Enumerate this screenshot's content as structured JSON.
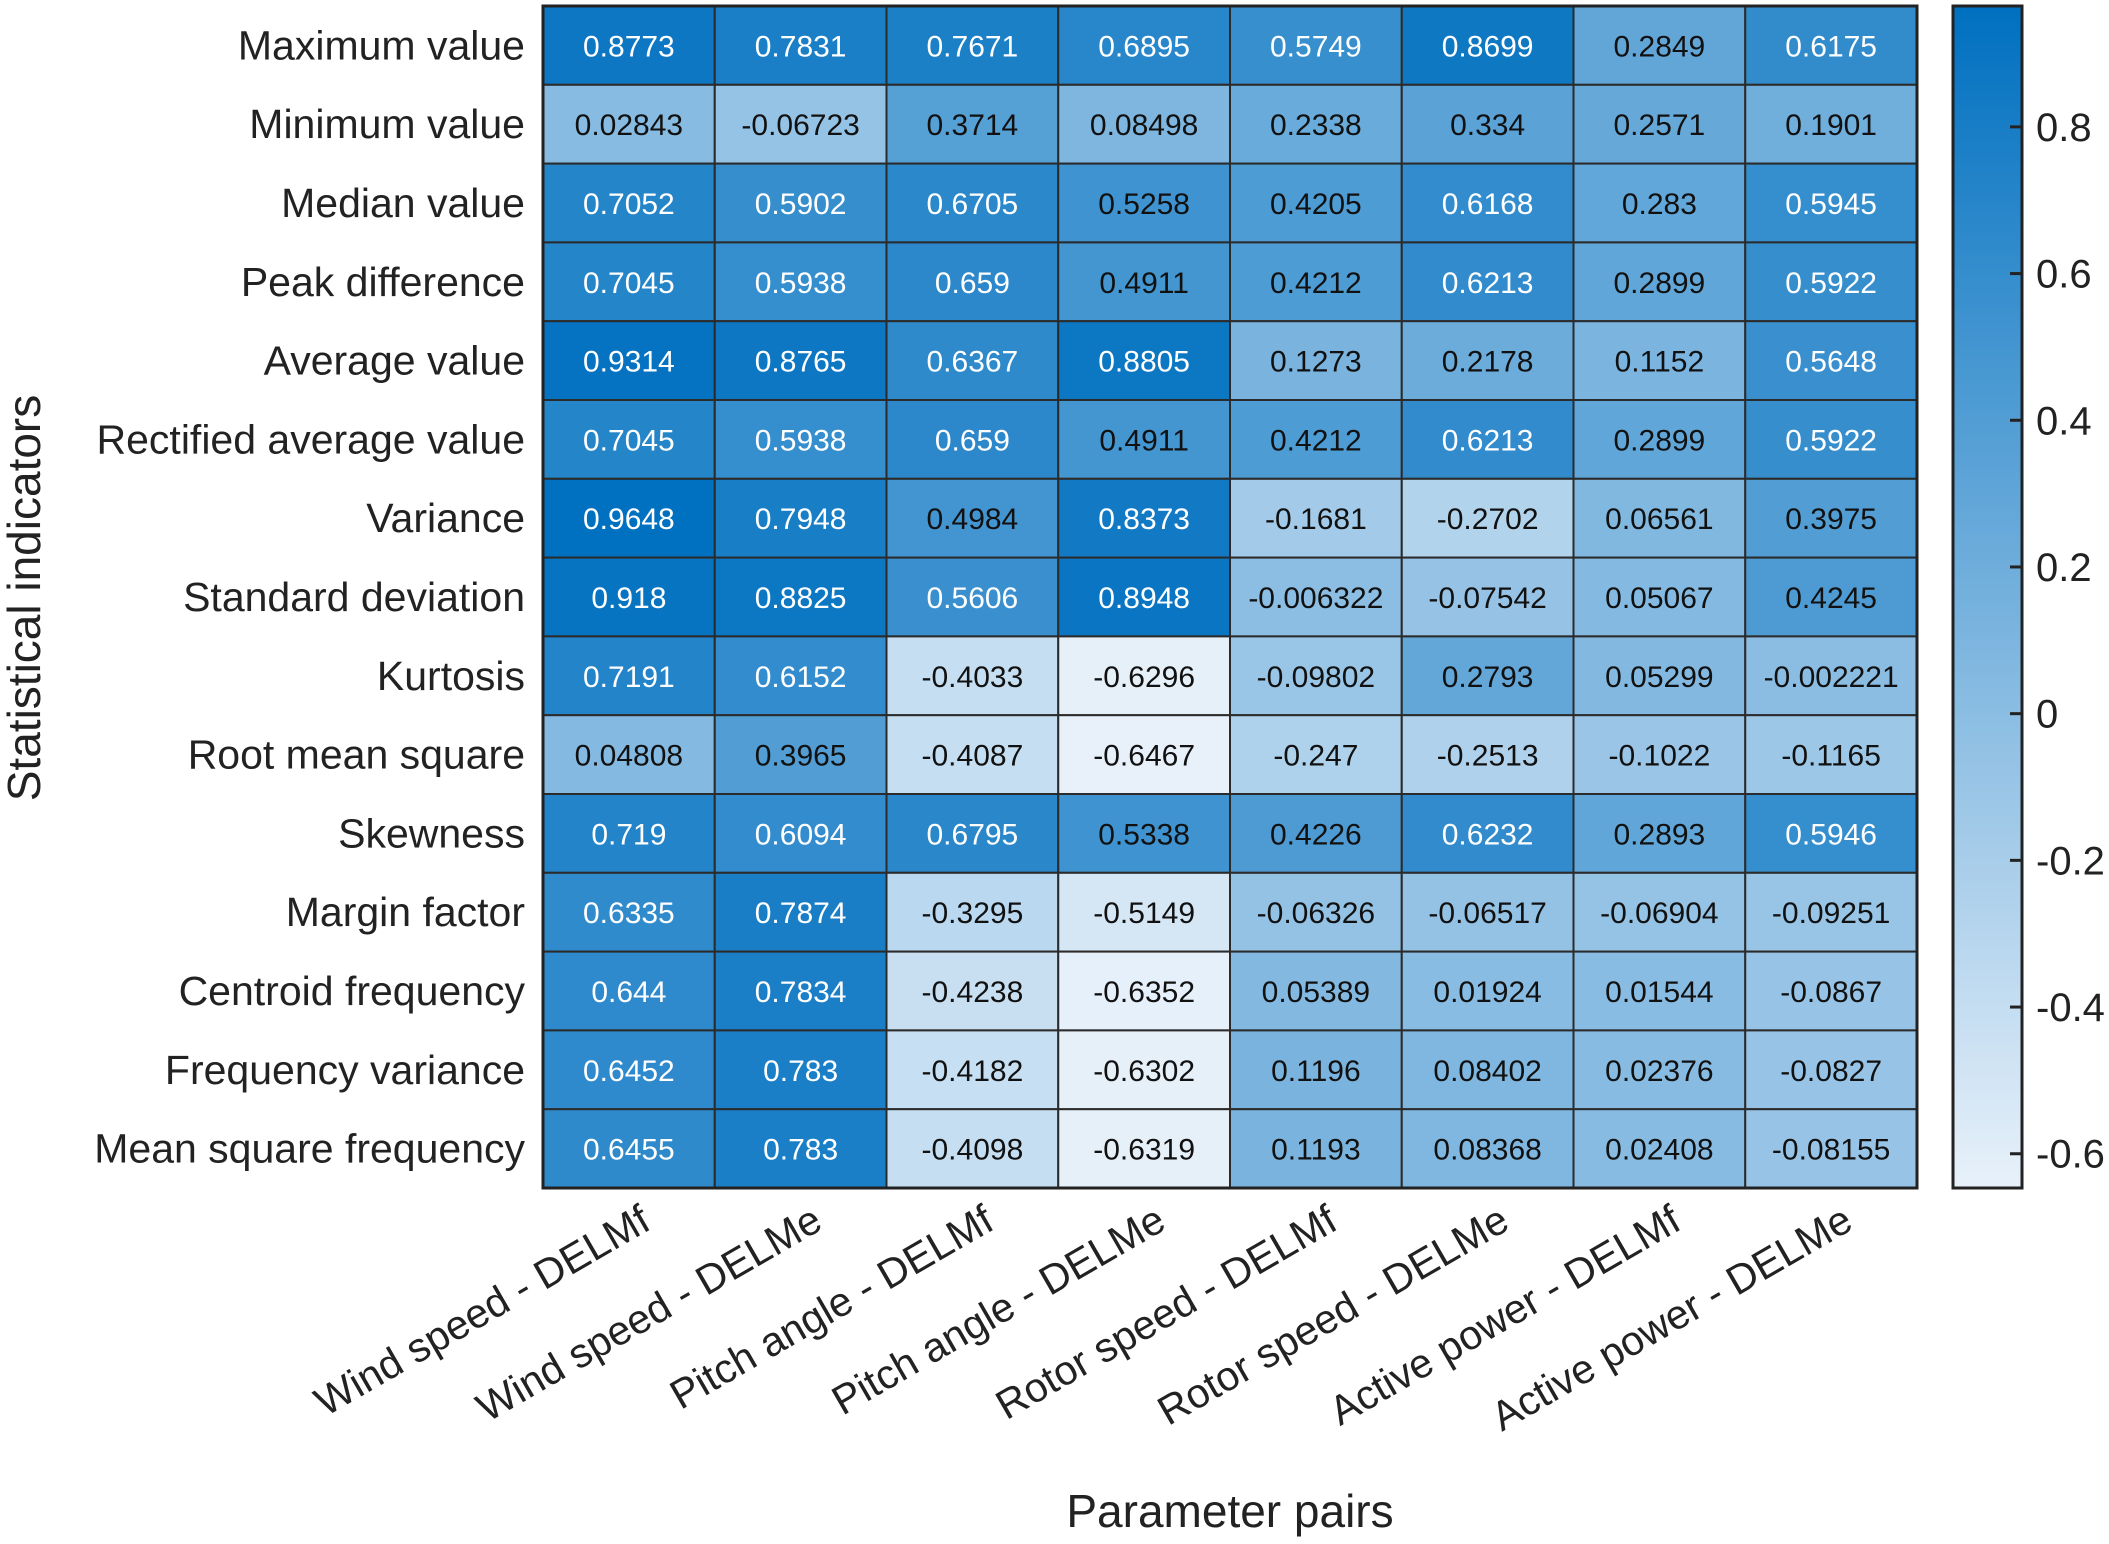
{
  "chart_data": {
    "type": "heatmap",
    "title": "",
    "xlabel": "Parameter pairs",
    "ylabel": "Statistical indicators",
    "columns": [
      "Wind speed - DELMf",
      "Wind speed - DELMe",
      "Pitch angle - DELMf",
      "Pitch angle - DELMe",
      "Rotor speed - DELMf",
      "Rotor speed - DELMe",
      "Active power - DELMf",
      "Active power - DELMe"
    ],
    "rows": [
      "Maximum value",
      "Minimum value",
      "Median value",
      "Peak difference",
      "Average value",
      "Rectified average value",
      "Variance",
      "Standard deviation",
      "Kurtosis",
      "Root mean square",
      "Skewness",
      "Margin factor",
      "Centroid frequency",
      "Frequency variance",
      "Mean square frequency"
    ],
    "values": [
      [
        "0.8773",
        "0.7831",
        "0.7671",
        "0.6895",
        "0.5749",
        "0.8699",
        "0.2849",
        "0.6175"
      ],
      [
        "0.02843",
        "-0.06723",
        "0.3714",
        "0.08498",
        "0.2338",
        "0.334",
        "0.2571",
        "0.1901"
      ],
      [
        "0.7052",
        "0.5902",
        "0.6705",
        "0.5258",
        "0.4205",
        "0.6168",
        "0.283",
        "0.5945"
      ],
      [
        "0.7045",
        "0.5938",
        "0.659",
        "0.4911",
        "0.4212",
        "0.6213",
        "0.2899",
        "0.5922"
      ],
      [
        "0.9314",
        "0.8765",
        "0.6367",
        "0.8805",
        "0.1273",
        "0.2178",
        "0.1152",
        "0.5648"
      ],
      [
        "0.7045",
        "0.5938",
        "0.659",
        "0.4911",
        "0.4212",
        "0.6213",
        "0.2899",
        "0.5922"
      ],
      [
        "0.9648",
        "0.7948",
        "0.4984",
        "0.8373",
        "-0.1681",
        "-0.2702",
        "0.06561",
        "0.3975"
      ],
      [
        "0.918",
        "0.8825",
        "0.5606",
        "0.8948",
        "-0.006322",
        "-0.07542",
        "0.05067",
        "0.4245"
      ],
      [
        "0.7191",
        "0.6152",
        "-0.4033",
        "-0.6296",
        "-0.09802",
        "0.2793",
        "0.05299",
        "-0.002221"
      ],
      [
        "0.04808",
        "0.3965",
        "-0.4087",
        "-0.6467",
        "-0.247",
        "-0.2513",
        "-0.1022",
        "-0.1165"
      ],
      [
        "0.719",
        "0.6094",
        "0.6795",
        "0.5338",
        "0.4226",
        "0.6232",
        "0.2893",
        "0.5946"
      ],
      [
        "0.6335",
        "0.7874",
        "-0.3295",
        "-0.5149",
        "-0.06326",
        "-0.06517",
        "-0.06904",
        "-0.09251"
      ],
      [
        "0.644",
        "0.7834",
        "-0.4238",
        "-0.6352",
        "0.05389",
        "0.01924",
        "0.01544",
        "-0.0867"
      ],
      [
        "0.6452",
        "0.783",
        "-0.4182",
        "-0.6302",
        "0.1196",
        "0.08402",
        "0.02376",
        "-0.0827"
      ],
      [
        "0.6455",
        "0.783",
        "-0.4098",
        "-0.6319",
        "0.1193",
        "0.08368",
        "0.02408",
        "-0.08155"
      ]
    ],
    "colorbar": {
      "range": [
        -0.6467,
        0.9648
      ],
      "ticks": [
        "0.8",
        "0.6",
        "0.4",
        "0.2",
        "0",
        "-0.2",
        "-0.4",
        "-0.6"
      ],
      "colors": {
        "high": "#0070c0",
        "low": "#e8f1fa"
      },
      "placement": "right"
    },
    "grid": false
  }
}
